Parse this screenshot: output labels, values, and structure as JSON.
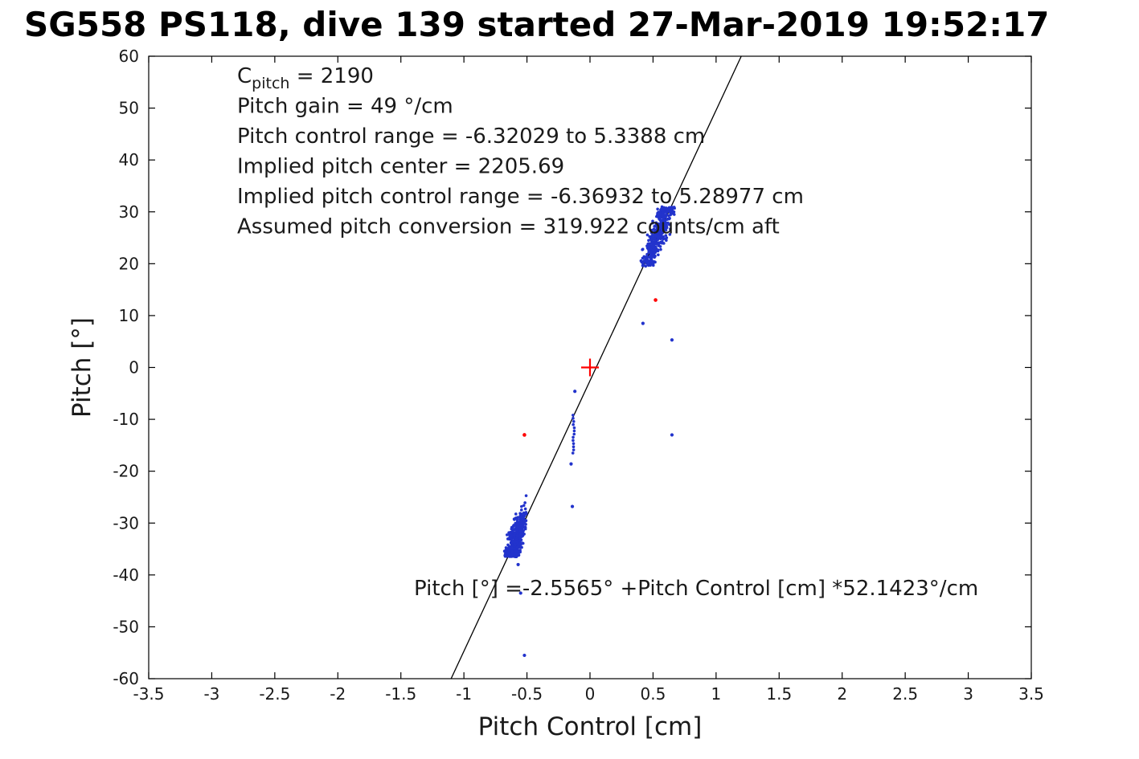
{
  "title": "SG558 PS118, dive 139 started 27-Mar-2019 19:52:17",
  "chart_data": {
    "type": "scatter",
    "title": "SG558 PS118, dive 139 started 27-Mar-2019 19:52:17",
    "xlabel": "Pitch Control [cm]",
    "ylabel": "Pitch [°]",
    "xlim": [
      -3.5,
      3.5
    ],
    "ylim": [
      -60,
      60
    ],
    "grid": false,
    "xticks": [
      -3.5,
      -3,
      -2.5,
      -2,
      -1.5,
      -1,
      -0.5,
      0,
      0.5,
      1,
      1.5,
      2,
      2.5,
      3,
      3.5
    ],
    "xtick_labels": [
      "-3.5",
      "-3",
      "-2.5",
      "-2",
      "-1.5",
      "-1",
      "-0.5",
      "0",
      "0.5",
      "1",
      "1.5",
      "2",
      "2.5",
      "3",
      "3.5"
    ],
    "yticks": [
      -60,
      -50,
      -40,
      -30,
      -20,
      -10,
      0,
      10,
      20,
      30,
      40,
      50,
      60
    ],
    "ytick_labels": [
      "-60",
      "-50",
      "-40",
      "-30",
      "-20",
      "-10",
      "0",
      "10",
      "20",
      "30",
      "40",
      "50",
      "60"
    ],
    "colors": {
      "points": "#2233cc",
      "red_points": "#ff0000",
      "fit_line": "#000000",
      "axis": "#000000",
      "origin_marker": "#ff0000"
    },
    "fit_line": {
      "intercept_deg": -2.5565,
      "slope_deg_per_cm": 52.1423
    },
    "origin_marker": {
      "x": 0,
      "y": 0,
      "shape": "plus"
    },
    "red_points": [
      [
        -0.52,
        -13
      ],
      [
        0.52,
        13
      ]
    ],
    "blue_points_isolated": [
      [
        0.42,
        8.5
      ],
      [
        0.65,
        5.3
      ],
      [
        -0.12,
        -4.6
      ],
      [
        -0.15,
        -18.6
      ],
      [
        -0.14,
        -26.8
      ],
      [
        0.65,
        -13
      ],
      [
        -0.52,
        -55.5
      ],
      [
        -0.55,
        -43.5
      ],
      [
        -0.57,
        -38.0
      ]
    ],
    "blue_strip": {
      "x": -0.13,
      "y_min": -16.5,
      "y_max": -9.2,
      "count": 13
    },
    "clusters": [
      {
        "name": "dive-cluster",
        "x_min": -0.68,
        "x_max": -0.5,
        "y_min": -36.5,
        "y_max": -24.5,
        "count": 450,
        "y_sigma": 2.0
      },
      {
        "name": "climb-cluster",
        "x_min": 0.4,
        "x_max": 0.68,
        "y_min": 19.5,
        "y_max": 31.0,
        "count": 400,
        "y_sigma": 2.0
      }
    ],
    "annotations": {
      "c_pitch": {
        "base": "C",
        "sub": "pitch",
        "rest": " = 2190"
      },
      "lines": [
        "Pitch gain = 49 °/cm",
        "Pitch control range = -6.32029 to 5.3388 cm",
        "Implied pitch center = 2205.69",
        "Implied pitch control range = -6.36932 to 5.28977 cm",
        "Assumed pitch conversion = 319.922 counts/cm aft"
      ],
      "equation": "Pitch [°] =-2.5565° +Pitch Control [cm] *52.1423°/cm"
    }
  }
}
